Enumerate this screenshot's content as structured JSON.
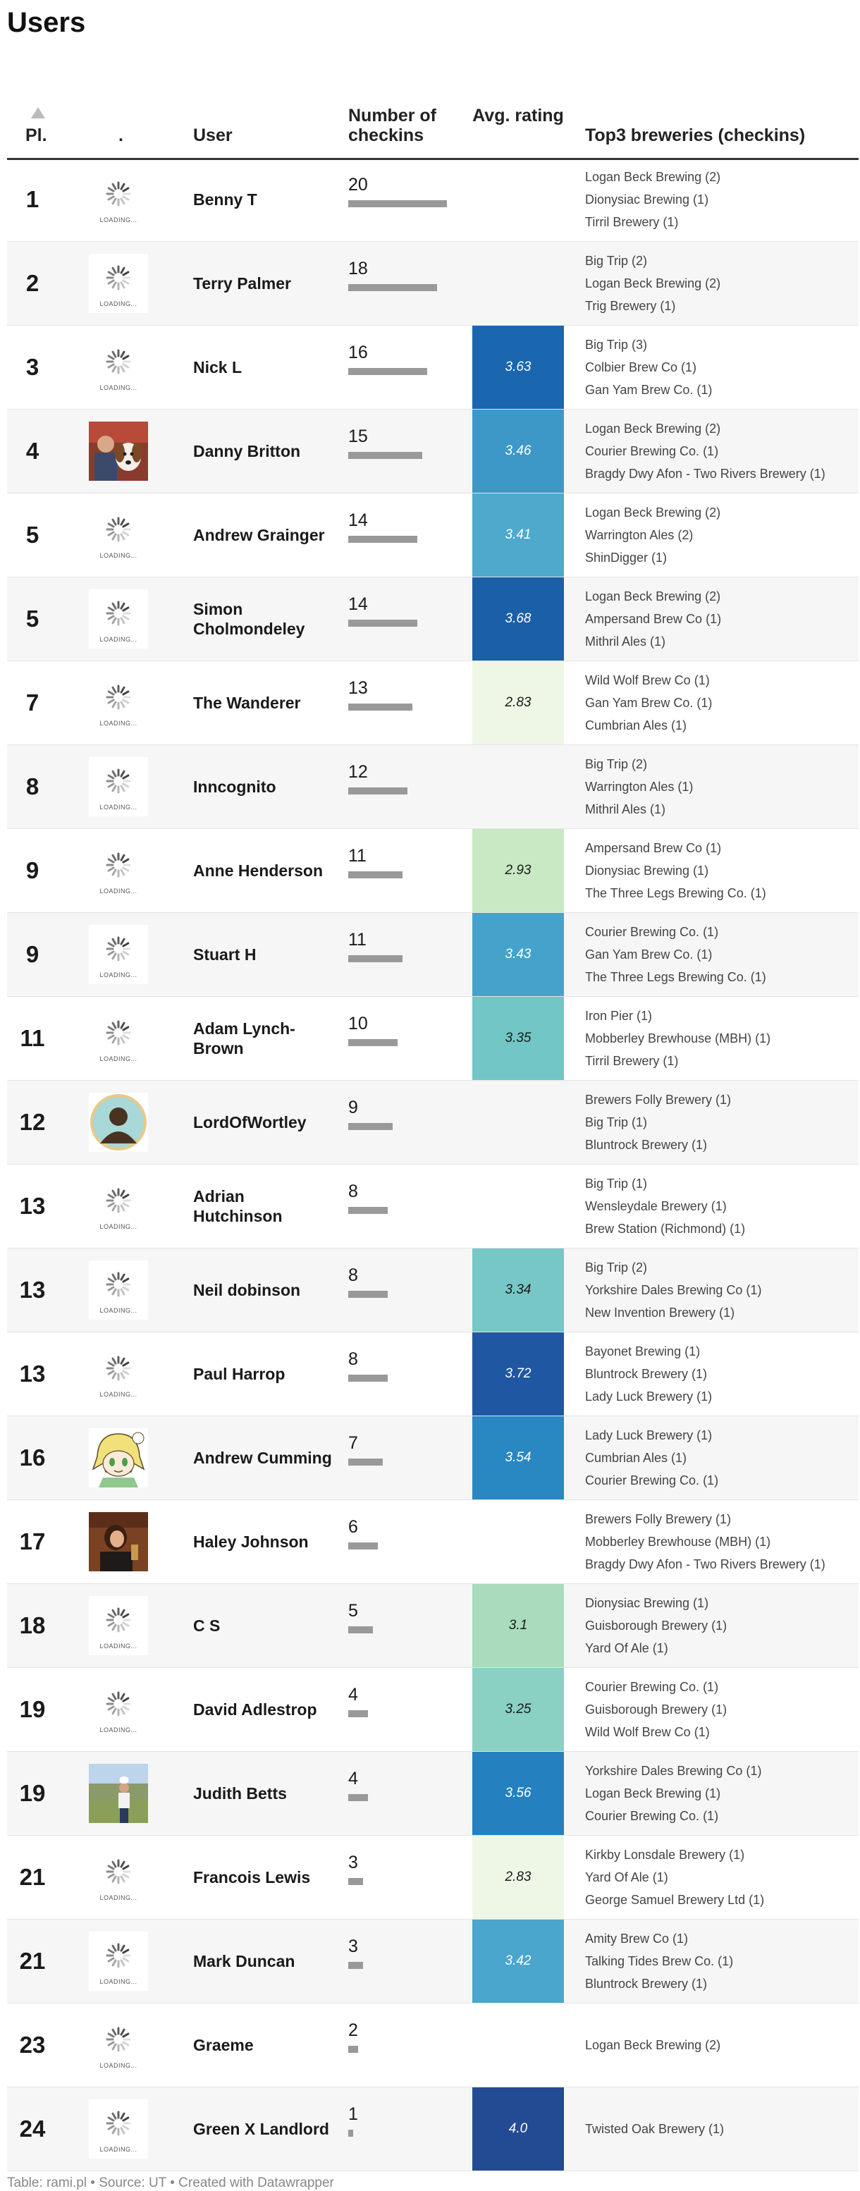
{
  "title": "Users",
  "header": {
    "pl": "Pl.",
    "dot": ".",
    "user": "User",
    "checkins": "Number of checkins",
    "rating": "Avg. rating",
    "top3": "Top3 breweries (checkins)"
  },
  "loading_text": "LOADING...",
  "chart_data": {
    "type": "table",
    "max_checkins": 20,
    "rows": [
      {
        "rank": "1",
        "user": "Benny T",
        "checkins": 20,
        "rating": null,
        "rating_color": null,
        "avatar": "loading",
        "top3": [
          "Logan Beck Brewing (2)",
          "Dionysiac Brewing (1)",
          "Tirril Brewery (1)"
        ]
      },
      {
        "rank": "2",
        "user": "Terry Palmer",
        "checkins": 18,
        "rating": null,
        "rating_color": null,
        "avatar": "loading",
        "top3": [
          "Big Trip (2)",
          "Logan Beck Brewing (2)",
          "Trig Brewery (1)"
        ]
      },
      {
        "rank": "3",
        "user": "Nick L",
        "checkins": 16,
        "rating": "3.63",
        "rating_color": "#1a67b0",
        "avatar": "loading",
        "top3": [
          "Big Trip (3)",
          "Colbier Brew Co (1)",
          "Gan Yam Brew Co. (1)"
        ]
      },
      {
        "rank": "4",
        "user": "Danny Britton",
        "checkins": 15,
        "rating": "3.46",
        "rating_color": "#3d98c8",
        "avatar": "photo-man-dog",
        "top3": [
          "Logan Beck Brewing (2)",
          "Courier Brewing Co. (1)",
          "Bragdy Dwy Afon - Two Rivers Brewery (1)"
        ]
      },
      {
        "rank": "5",
        "user": "Andrew Grainger",
        "checkins": 14,
        "rating": "3.41",
        "rating_color": "#4ea9cd",
        "avatar": "loading",
        "top3": [
          "Logan Beck Brewing (2)",
          "Warrington Ales (2)",
          "ShinDigger (1)"
        ]
      },
      {
        "rank": "5",
        "user": "Simon Cholmondeley",
        "checkins": 14,
        "rating": "3.68",
        "rating_color": "#1b5fa8",
        "avatar": "loading",
        "top3": [
          "Logan Beck Brewing (2)",
          "Ampersand Brew Co (1)",
          "Mithril Ales (1)"
        ]
      },
      {
        "rank": "7",
        "user": "The Wanderer",
        "checkins": 13,
        "rating": "2.83",
        "rating_color": "#eef7e6",
        "avatar": "loading",
        "top3": [
          "Wild Wolf Brew Co (1)",
          "Gan Yam Brew Co. (1)",
          "Cumbrian Ales (1)"
        ]
      },
      {
        "rank": "8",
        "user": "Inncognito",
        "checkins": 12,
        "rating": null,
        "rating_color": null,
        "avatar": "loading",
        "top3": [
          "Big Trip (2)",
          "Warrington Ales (1)",
          "Mithril Ales (1)"
        ]
      },
      {
        "rank": "9",
        "user": "Anne Henderson",
        "checkins": 11,
        "rating": "2.93",
        "rating_color": "#c8e9c3",
        "avatar": "loading",
        "top3": [
          "Ampersand Brew Co (1)",
          "Dionysiac Brewing (1)",
          "The Three Legs Brewing Co. (1)"
        ]
      },
      {
        "rank": "9",
        "user": "Stuart H",
        "checkins": 11,
        "rating": "3.43",
        "rating_color": "#45a2cb",
        "avatar": "loading",
        "top3": [
          "Courier Brewing Co. (1)",
          "Gan Yam Brew Co. (1)",
          "The Three Legs Brewing Co. (1)"
        ]
      },
      {
        "rank": "11",
        "user": "Adam Lynch-Brown",
        "checkins": 10,
        "rating": "3.35",
        "rating_color": "#72c6c6",
        "avatar": "loading",
        "top3": [
          "Iron Pier (1)",
          "Mobberley Brewhouse (MBH) (1)",
          "Tirril Brewery (1)"
        ]
      },
      {
        "rank": "12",
        "user": "LordOfWortley",
        "checkins": 9,
        "rating": null,
        "rating_color": null,
        "avatar": "silhouette",
        "top3": [
          "Brewers Folly Brewery (1)",
          "Big Trip (1)",
          "Bluntrock Brewery (1)"
        ]
      },
      {
        "rank": "13",
        "user": "Adrian Hutchinson",
        "checkins": 8,
        "rating": null,
        "rating_color": null,
        "avatar": "loading",
        "top3": [
          "Big Trip (1)",
          "Wensleydale Brewery (1)",
          "Brew Station (Richmond) (1)"
        ]
      },
      {
        "rank": "13",
        "user": "Neil dobinson",
        "checkins": 8,
        "rating": "3.34",
        "rating_color": "#76c7c5",
        "avatar": "loading",
        "top3": [
          "Big Trip (2)",
          "Yorkshire Dales Brewing Co (1)",
          "New Invention Brewery (1)"
        ]
      },
      {
        "rank": "13",
        "user": "Paul Harrop",
        "checkins": 8,
        "rating": "3.72",
        "rating_color": "#1f57a3",
        "avatar": "loading",
        "top3": [
          "Bayonet Brewing (1)",
          "Bluntrock Brewery (1)",
          "Lady Luck Brewery (1)"
        ]
      },
      {
        "rank": "16",
        "user": "Andrew Cumming",
        "checkins": 7,
        "rating": "3.54",
        "rating_color": "#2987c1",
        "avatar": "cartoon",
        "top3": [
          "Lady Luck Brewery (1)",
          "Cumbrian Ales (1)",
          "Courier Brewing Co. (1)"
        ]
      },
      {
        "rank": "17",
        "user": "Haley Johnson",
        "checkins": 6,
        "rating": null,
        "rating_color": null,
        "avatar": "photo-woman",
        "top3": [
          "Brewers Folly Brewery (1)",
          "Mobberley Brewhouse (MBH) (1)",
          "Bragdy Dwy Afon - Two Rivers Brewery (1)"
        ]
      },
      {
        "rank": "18",
        "user": "C S",
        "checkins": 5,
        "rating": "3.1",
        "rating_color": "#a8dcbc",
        "avatar": "loading",
        "top3": [
          "Dionysiac Brewing (1)",
          "Guisborough Brewery (1)",
          "Yard Of Ale (1)"
        ]
      },
      {
        "rank": "19",
        "user": "David Adlestrop",
        "checkins": 4,
        "rating": "3.25",
        "rating_color": "#8ad0c3",
        "avatar": "loading",
        "top3": [
          "Courier Brewing Co. (1)",
          "Guisborough Brewery (1)",
          "Wild Wolf Brew Co (1)"
        ]
      },
      {
        "rank": "19",
        "user": "Judith Betts",
        "checkins": 4,
        "rating": "3.56",
        "rating_color": "#2580bf",
        "avatar": "photo-outdoor",
        "top3": [
          "Yorkshire Dales Brewing Co (1)",
          "Logan Beck Brewing (1)",
          "Courier Brewing Co. (1)"
        ]
      },
      {
        "rank": "21",
        "user": "Francois Lewis",
        "checkins": 3,
        "rating": "2.83",
        "rating_color": "#eef7e6",
        "avatar": "loading",
        "top3": [
          "Kirkby Lonsdale Brewery (1)",
          "Yard Of Ale (1)",
          "George Samuel Brewery Ltd (1)"
        ]
      },
      {
        "rank": "21",
        "user": "Mark Duncan",
        "checkins": 3,
        "rating": "3.42",
        "rating_color": "#4aa6cc",
        "avatar": "loading",
        "top3": [
          "Amity Brew Co (1)",
          "Talking Tides Brew Co. (1)",
          "Bluntrock Brewery (1)"
        ]
      },
      {
        "rank": "23",
        "user": "Graeme",
        "checkins": 2,
        "rating": null,
        "rating_color": null,
        "avatar": "loading",
        "top3": [
          "Logan Beck Brewing (2)"
        ]
      },
      {
        "rank": "24",
        "user": "Green X Landlord",
        "checkins": 1,
        "rating": "4.0",
        "rating_color": "#234b94",
        "avatar": "loading",
        "top3": [
          "Twisted Oak Brewery (1)"
        ]
      }
    ]
  },
  "footer": "Table: rami.pl • Source: UT • Created with Datawrapper"
}
